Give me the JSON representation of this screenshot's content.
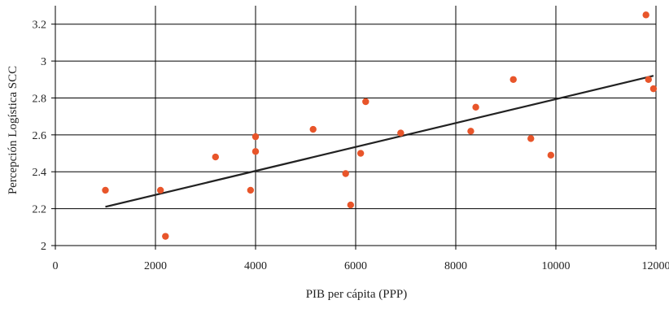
{
  "chart_data": {
    "type": "scatter",
    "title": "",
    "xlabel": "PIB per cápita (PPP)",
    "ylabel": "Percepción Logística SCC",
    "xlim": [
      0,
      12000
    ],
    "ylim": [
      2,
      3.3
    ],
    "x_ticks": [
      0,
      2000,
      4000,
      6000,
      8000,
      10000,
      12000
    ],
    "y_ticks": [
      2,
      2.2,
      2.4,
      2.6,
      2.8,
      3,
      3.2
    ],
    "grid": true,
    "legend": "none",
    "series": [
      {
        "color": "#e8552a",
        "points": [
          {
            "x": 1000,
            "y": 2.3
          },
          {
            "x": 2100,
            "y": 2.3
          },
          {
            "x": 2200,
            "y": 2.05
          },
          {
            "x": 3200,
            "y": 2.48
          },
          {
            "x": 3900,
            "y": 2.3
          },
          {
            "x": 4000,
            "y": 2.59
          },
          {
            "x": 4000,
            "y": 2.51
          },
          {
            "x": 5150,
            "y": 2.63
          },
          {
            "x": 5800,
            "y": 2.39
          },
          {
            "x": 5900,
            "y": 2.22
          },
          {
            "x": 6100,
            "y": 2.5
          },
          {
            "x": 6200,
            "y": 2.78
          },
          {
            "x": 6900,
            "y": 2.61
          },
          {
            "x": 8300,
            "y": 2.62
          },
          {
            "x": 8400,
            "y": 2.75
          },
          {
            "x": 9150,
            "y": 2.9
          },
          {
            "x": 9500,
            "y": 2.58
          },
          {
            "x": 9900,
            "y": 2.49
          },
          {
            "x": 11800,
            "y": 3.25
          },
          {
            "x": 11850,
            "y": 2.9
          },
          {
            "x": 11950,
            "y": 2.85
          }
        ]
      }
    ],
    "trendline": {
      "type": "linear",
      "color": "#222222",
      "from": {
        "x": 1000,
        "y": 2.21
      },
      "to": {
        "x": 11950,
        "y": 2.92
      }
    }
  }
}
